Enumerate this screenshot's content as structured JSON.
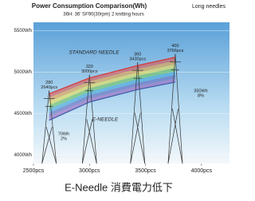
{
  "chart_data": {
    "type": "line",
    "title": "Power Consumption Comparison(Wh)",
    "title_note": "Long needles",
    "subtitle": "36H: 36' SF90(30rpm) 2 knitting hours",
    "caption": "E-Needle 消費電力低下",
    "x": [
      2640,
      3000,
      3430,
      3766
    ],
    "series": [
      {
        "name": "STANDARD NEEDLE",
        "color": "#d23c3c",
        "values": [
          4740,
          4930,
          5080,
          5180
        ]
      },
      {
        "name": "E-NEEDLE",
        "color": "#3c5aa8",
        "values": [
          4420,
          4640,
          4790,
          4880
        ]
      }
    ],
    "point_labels": [
      [
        "280",
        "2640pcs"
      ],
      [
        "320",
        "3000pcs"
      ],
      [
        "360",
        "3430pcs"
      ],
      [
        "400",
        "3766pcs"
      ]
    ],
    "annotations": [
      [
        "70Wh",
        "2%"
      ],
      [
        "350Wh",
        "8%"
      ]
    ],
    "xlim": [
      2500,
      4250
    ],
    "ylim": [
      3900,
      5600
    ],
    "xticks": [
      {
        "value": 2500,
        "label": "2500pcs"
      },
      {
        "value": 3000,
        "label": "3000pcs"
      },
      {
        "value": 3500,
        "label": "3500pcs"
      },
      {
        "value": 4000,
        "label": "4000pcs"
      }
    ],
    "yticks": [
      {
        "value": 4000,
        "label": "4000Wh"
      },
      {
        "value": 4500,
        "label": "4500Wh"
      },
      {
        "value": 5000,
        "label": "5000Wh"
      },
      {
        "value": 5500,
        "label": "5500Wh"
      }
    ],
    "grid": true
  }
}
